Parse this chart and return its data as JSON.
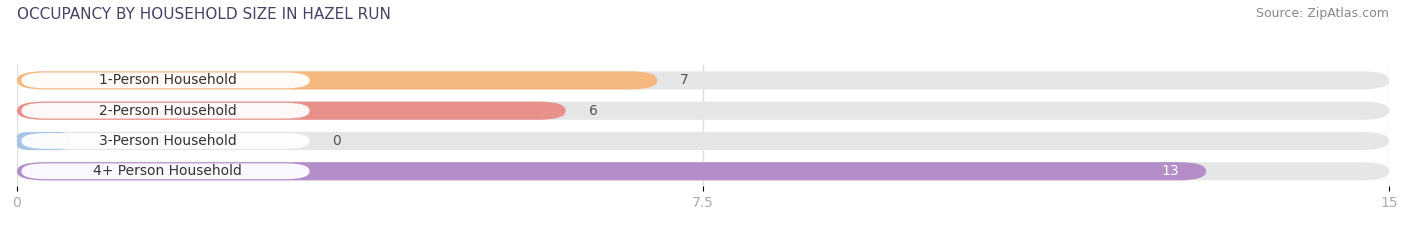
{
  "title": "OCCUPANCY BY HOUSEHOLD SIZE IN HAZEL RUN",
  "source": "Source: ZipAtlas.com",
  "categories": [
    "1-Person Household",
    "2-Person Household",
    "3-Person Household",
    "4+ Person Household"
  ],
  "values": [
    7,
    6,
    0,
    13
  ],
  "bar_colors": [
    "#f5b97f",
    "#e8908a",
    "#aac4e8",
    "#b48ec8"
  ],
  "xlim": [
    0,
    15
  ],
  "xticks": [
    0,
    7.5,
    15
  ],
  "bg_color": "#ffffff",
  "bar_bg_color": "#e8e8e8",
  "label_color_light": "#ffffff",
  "label_color_dark": "#555555",
  "title_fontsize": 11,
  "source_fontsize": 9,
  "tick_fontsize": 10,
  "bar_label_fontsize": 10,
  "category_fontsize": 10,
  "title_color": "#444466",
  "source_color": "#888888",
  "tick_color": "#aaaaaa"
}
